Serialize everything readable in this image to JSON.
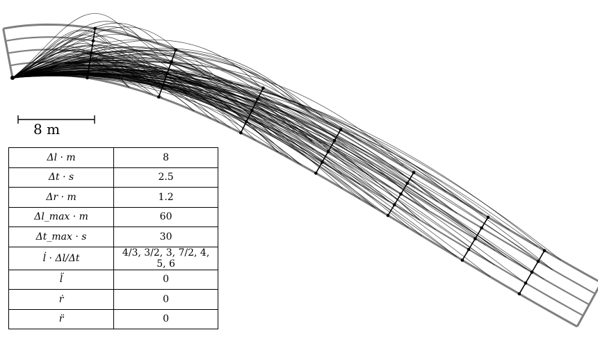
{
  "scalebar": {
    "label": "8 m"
  },
  "table": {
    "rows": [
      {
        "symbol": "Δl · m",
        "value": "8"
      },
      {
        "symbol": "Δt · s",
        "value": "2.5"
      },
      {
        "symbol": "Δr · m",
        "value": "1.2"
      },
      {
        "symbol": "Δl_max · m",
        "value": "60"
      },
      {
        "symbol": "Δt_max · s",
        "value": "30"
      },
      {
        "symbol": "l̇ · Δl/Δt",
        "value": "4/3, 3/2, 3, 7/2, 4, 5, 6"
      },
      {
        "symbol": "l̈",
        "value": "0"
      },
      {
        "symbol": "ṙ",
        "value": "0"
      },
      {
        "symbol": "r̈",
        "value": "0"
      }
    ]
  },
  "colors": {
    "road": "#7f7f7f",
    "trajectory": "#000000",
    "grid_line": "#000000"
  }
}
